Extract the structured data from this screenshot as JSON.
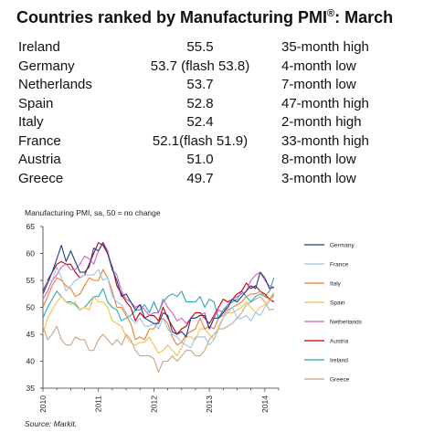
{
  "header": {
    "title": "Countries ranked by Manufacturing PMI",
    "title_mark": "®",
    "title_suffix": ": March"
  },
  "ranking": [
    {
      "country": "Ireland",
      "value": "55.5",
      "note": "35-month high"
    },
    {
      "country": "Germany",
      "value": "53.7 (flash 53.8)",
      "note": "4-month low"
    },
    {
      "country": "Netherlands",
      "value": "53.7",
      "note": "7-month low"
    },
    {
      "country": "Spain",
      "value": "52.8",
      "note": "47-month high"
    },
    {
      "country": "Italy",
      "value": "52.4",
      "note": "2-month high"
    },
    {
      "country": "France",
      "value": "52.1(flash 51.9)",
      "note": "33-month high"
    },
    {
      "country": "Austria",
      "value": "51.0",
      "note": "8-month low"
    },
    {
      "country": "Greece",
      "value": "49.7",
      "note": "3-month low"
    }
  ],
  "source": "Source: Markit.",
  "chart_data": {
    "type": "line",
    "title": "Manufacturing PMI, sa, 50 = no change",
    "ylim": [
      35,
      65
    ],
    "yticks": [
      35,
      40,
      45,
      50,
      55,
      60,
      65
    ],
    "xlim": [
      2010.0,
      2014.25
    ],
    "xticks": [
      "2010",
      "2011",
      "2012",
      "2013",
      "2014"
    ],
    "grid": false,
    "legend_position": "right",
    "series": [
      {
        "name": "Germany",
        "color": "#1f3c88",
        "start": 2010.0,
        "values": [
          52.5,
          54.5,
          56.5,
          59,
          61.5,
          58.5,
          60.5,
          58.5,
          56.5,
          56.5,
          57.5,
          61,
          60.5,
          62,
          60,
          57,
          55,
          52,
          52.5,
          51,
          49.5,
          50.5,
          48,
          47.5,
          47,
          47,
          49,
          48.5,
          45.5,
          45,
          45.5,
          44.5,
          48,
          48,
          48.5,
          48.5,
          46,
          48,
          48,
          49,
          50,
          51.5,
          51,
          52,
          53,
          54,
          53.5,
          56.5,
          55.5,
          53.5,
          53.7
        ]
      },
      {
        "name": "France",
        "color": "#9dc3e6",
        "start": 2010.0,
        "values": [
          52.5,
          55,
          55,
          57.5,
          55.5,
          53,
          54,
          55,
          55.5,
          56,
          56,
          56,
          57,
          55,
          55.5,
          52,
          51,
          50.5,
          49,
          48,
          47,
          48,
          46.5,
          46.5,
          47,
          46,
          48,
          46,
          45,
          44.5,
          43.5,
          43,
          42.5,
          44.5,
          44.5,
          44.5,
          43,
          44,
          46,
          48,
          49,
          50,
          48,
          48,
          48.5,
          47.5,
          49,
          48.5,
          50,
          51,
          52.1
        ]
      },
      {
        "name": "Italy",
        "color": "#ed7d31",
        "start": 2010.0,
        "values": [
          50,
          52,
          54,
          55.5,
          55,
          54,
          53.5,
          52,
          52.5,
          54,
          55.5,
          55,
          55,
          57,
          55.5,
          53,
          50,
          50,
          48.5,
          47,
          44,
          44.5,
          44,
          46,
          46,
          47.5,
          48,
          47,
          44.5,
          43,
          43.5,
          45,
          45.5,
          46,
          48,
          46,
          46.5,
          46,
          48,
          48.5,
          49.5,
          50,
          50.5,
          51,
          52,
          52.5,
          52.5,
          53,
          52,
          51.5,
          52.4
        ]
      },
      {
        "name": "Spain",
        "color": "#f2c14e",
        "start": 2010.0,
        "values": [
          45,
          48,
          49.5,
          51,
          52,
          51,
          50.5,
          51,
          49.5,
          50,
          49.5,
          52,
          51,
          51,
          50,
          47.5,
          47,
          46.5,
          44.5,
          43.5,
          43,
          43.5,
          43.5,
          44.5,
          43,
          41.5,
          42,
          43,
          42,
          41,
          42.5,
          44.5,
          44.5,
          44,
          46,
          46,
          45,
          44,
          46.5,
          48,
          49,
          49,
          49.5,
          50,
          51,
          50,
          49,
          50,
          50.5,
          51.5,
          52.8
        ]
      },
      {
        "name": "Netherlands",
        "color": "#d061c4",
        "start": 2010.0,
        "values": [
          51.5,
          53,
          55,
          56,
          57.5,
          58,
          57,
          57,
          58,
          59.5,
          59,
          58,
          60.5,
          62,
          60.5,
          57,
          56,
          53,
          51.5,
          51,
          50,
          50.5,
          49.5,
          48.5,
          49,
          49,
          51.5,
          50,
          49,
          47.5,
          48,
          47,
          48,
          48,
          48.5,
          49,
          46,
          48,
          49.5,
          49,
          50.5,
          51.5,
          52,
          52.5,
          53,
          55,
          56,
          56.5,
          55,
          54,
          53.7
        ]
      },
      {
        "name": "Austria",
        "color": "#c00000",
        "start": 2010.0,
        "values": [
          53,
          55,
          56.5,
          58,
          58.5,
          58,
          58,
          56.5,
          55.5,
          56,
          58,
          60,
          62,
          61.5,
          60,
          57.5,
          54,
          52.5,
          51,
          50,
          47.5,
          49,
          48,
          48.5,
          48.5,
          47.5,
          50,
          48,
          46.5,
          45,
          46,
          46.5,
          48,
          49,
          49,
          48,
          47,
          48.5,
          50,
          51.5,
          51,
          51.5,
          52.5,
          53,
          54.5,
          53.5,
          54,
          53,
          52.5,
          51.5,
          51.0
        ]
      },
      {
        "name": "Ireland",
        "color": "#27a8b8",
        "start": 2010.0,
        "values": [
          48,
          50,
          51.5,
          53,
          52,
          51,
          51,
          50.5,
          49.5,
          50,
          51,
          52,
          52,
          53.5,
          51,
          50,
          49.5,
          47.5,
          48,
          48.5,
          49.5,
          49.5,
          50.5,
          49,
          51,
          49,
          51,
          52,
          52.5,
          52,
          53,
          51,
          51,
          51,
          52,
          50,
          51.5,
          51,
          48,
          49.5,
          50.5,
          51,
          51.5,
          53,
          52,
          51,
          52,
          52.5,
          52,
          53,
          55.5
        ]
      },
      {
        "name": "Greece",
        "color": "#c9a582",
        "start": 2010.0,
        "values": [
          46.5,
          44,
          45,
          46.5,
          44,
          43,
          43,
          44.5,
          44,
          44,
          42,
          42,
          44,
          45,
          44,
          43,
          44,
          43,
          45,
          44,
          42,
          41,
          41,
          41,
          40.5,
          38,
          40,
          40,
          41,
          40,
          41,
          42,
          42,
          41,
          41,
          42,
          44,
          45,
          46,
          46,
          46.5,
          47,
          48,
          49,
          50.5,
          51,
          51.5,
          52,
          51,
          49.5,
          49.7
        ]
      }
    ]
  }
}
